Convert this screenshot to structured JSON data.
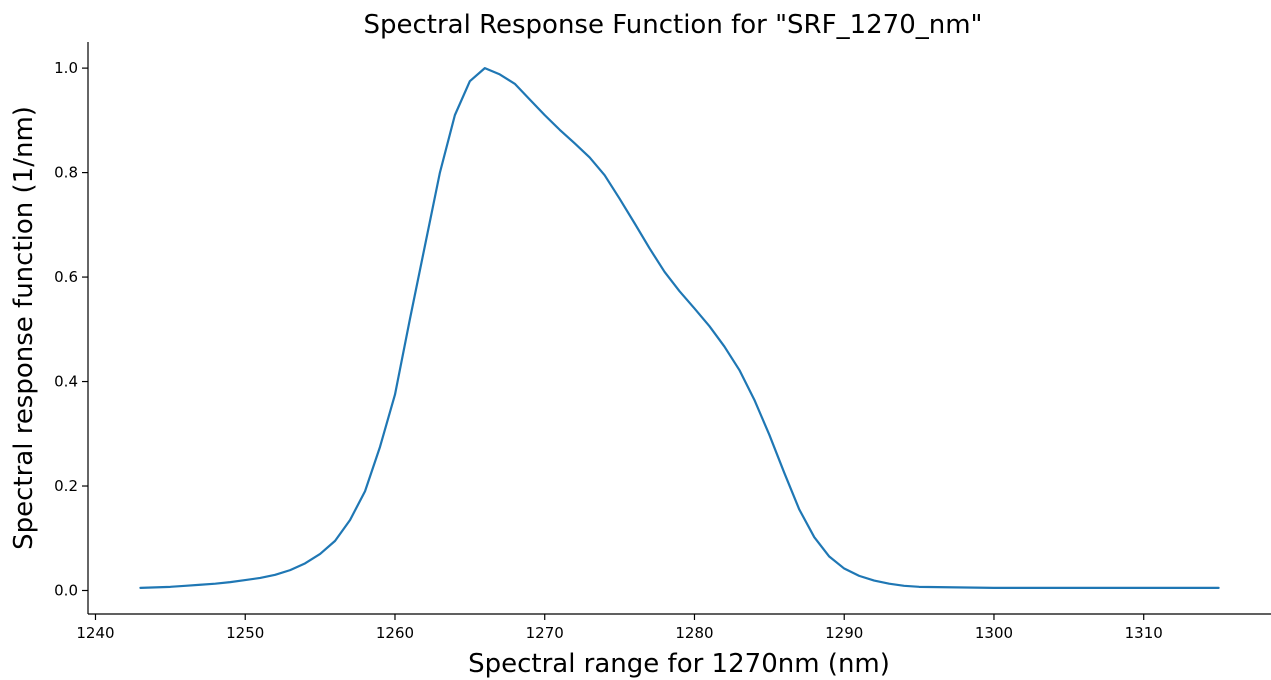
{
  "chart_data": {
    "type": "line",
    "title": "Spectral Response Function for \"SRF_1270_nm\"",
    "xlabel": "Spectral range for 1270nm (nm)",
    "ylabel": "Spectral response function (1/nm)",
    "xlim": [
      1239.5,
      1318.5
    ],
    "ylim": [
      -0.045,
      1.05
    ],
    "xticks": [
      1240,
      1250,
      1260,
      1270,
      1280,
      1290,
      1300,
      1310
    ],
    "yticks": [
      0.0,
      0.2,
      0.4,
      0.6,
      0.8,
      1.0
    ],
    "xtick_labels": [
      "1240",
      "1250",
      "1260",
      "1270",
      "1280",
      "1290",
      "1300",
      "1310"
    ],
    "ytick_labels": [
      "0.0",
      "0.2",
      "0.4",
      "0.6",
      "0.8",
      "1.0"
    ],
    "grid": false,
    "legend": "none",
    "colors": {
      "series": "#1f77b4"
    },
    "series": [
      {
        "x": [
          1243,
          1244,
          1245,
          1246,
          1247,
          1248,
          1249,
          1250,
          1251,
          1252,
          1253,
          1254,
          1255,
          1256,
          1257,
          1258,
          1259,
          1260,
          1261,
          1262,
          1263,
          1264,
          1265,
          1266,
          1267,
          1268,
          1269,
          1270,
          1271,
          1272,
          1273,
          1274,
          1275,
          1276,
          1277,
          1278,
          1279,
          1280,
          1281,
          1282,
          1283,
          1284,
          1285,
          1286,
          1287,
          1288,
          1289,
          1290,
          1291,
          1292,
          1293,
          1294,
          1295,
          1300,
          1305,
          1310,
          1315
        ],
        "y": [
          0.005,
          0.006,
          0.007,
          0.009,
          0.011,
          0.013,
          0.016,
          0.02,
          0.024,
          0.03,
          0.039,
          0.052,
          0.07,
          0.095,
          0.135,
          0.19,
          0.275,
          0.375,
          0.52,
          0.66,
          0.8,
          0.91,
          0.975,
          1.0,
          0.988,
          0.97,
          0.94,
          0.91,
          0.882,
          0.856,
          0.829,
          0.795,
          0.75,
          0.703,
          0.655,
          0.61,
          0.573,
          0.54,
          0.506,
          0.467,
          0.422,
          0.365,
          0.298,
          0.225,
          0.155,
          0.102,
          0.065,
          0.042,
          0.028,
          0.019,
          0.013,
          0.009,
          0.007,
          0.005,
          0.005,
          0.005,
          0.005
        ]
      }
    ]
  }
}
